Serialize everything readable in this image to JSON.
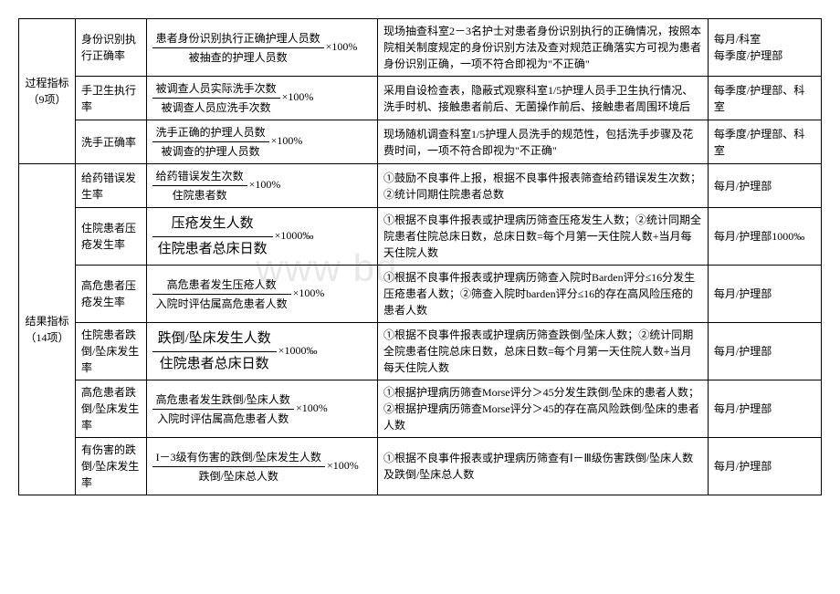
{
  "watermark": "www bd",
  "categories": {
    "process": {
      "label": "过程指标（9项）",
      "rows": [
        {
          "name": "身份识别执行正确率",
          "formula_num": "患者身份识别执行正确护理人员数",
          "formula_den": "被抽查的护理人员数",
          "multiplier": "×100%",
          "desc": "现场抽查科室2－3名护士对患者身份识别执行的正确情况，按照本院相关制度规定的身份识别方法及查对规范正确落实方可视为患者身份识别正确，一项不符合即视为\"不正确\"",
          "freq": "每月/科室\n每季度/护理部"
        },
        {
          "name": "手卫生执行率",
          "formula_num": "被调查人员实际洗手次数",
          "formula_den": "被调查人员应洗手次数",
          "multiplier": "×100%",
          "desc": "采用自设检查表，隐蔽式观察科室1/5护理人员手卫生执行情况、洗手时机、接触患者前后、无菌操作前后、接触患者周围环境后",
          "freq": "每季度/护理部、科室"
        },
        {
          "name": "洗手正确率",
          "formula_num": "洗手正确的护理人员数",
          "formula_den": "被调查的护理人员数",
          "multiplier": "×100%",
          "desc": "现场随机调查科室1/5护理人员洗手的规范性，包括洗手步骤及花费时间，一项不符合即视为\"不正确\"",
          "freq": "每季度/护理部、科室"
        }
      ]
    },
    "result": {
      "label": "结果指标（14项）",
      "rows": [
        {
          "name": "给药错误发生率",
          "formula_num": "给药错误发生次数",
          "formula_den": "住院患者数",
          "multiplier": "×100%",
          "desc": "①鼓励不良事件上报，根据不良事件报表筛查给药错误发生次数；②统计同期住院患者总数",
          "freq": "每月/护理部"
        },
        {
          "name": "住院患者压疮发生率",
          "formula_num": "压疮发生人数",
          "formula_den": "住院患者总床日数",
          "multiplier": "×1000‰",
          "large": true,
          "desc": "①根据不良事件报表或护理病历筛查压疮发生人数；②统计同期全院患者住院总床日数，总床日数=每个月第一天住院人数+当月每天住院人数",
          "freq": "每月/护理部1000‰"
        },
        {
          "name": "高危患者压疮发生率",
          "formula_num": "高危患者发生压疮人数",
          "formula_den": "入院时评估属高危患者人数",
          "multiplier": "×100%",
          "desc": "①根据不良事件报表或护理病历筛查入院时Barden评分≤16分发生压疮患者人数；②筛查入院时barden评分≤16的存在高风险压疮的患者人数",
          "freq": "每月/护理部"
        },
        {
          "name": "住院患者跌倒/坠床发生率",
          "formula_num": "跌倒/坠床发生人数",
          "formula_den": "住院患者总床日数",
          "multiplier": "×1000‰",
          "large": true,
          "desc": "①根据不良事件报表或护理病历筛查跌倒/坠床人数；②统计同期全院患者住院总床日数，总床日数=每个月第一天住院人数+当月每天住院人数",
          "freq": "每月/护理部"
        },
        {
          "name": "高危患者跌倒/坠床发生率",
          "formula_num": "高危患者发生跌倒/坠床人数",
          "formula_den": "入院时评估属高危患者人数",
          "multiplier": "×100%",
          "desc": "①根据护理病历筛查Morse评分＞45分发生跌倒/坠床的患者人数；②根据护理病历筛查Morse评分＞45的存在高风险跌倒/坠床的患者人数",
          "freq": "每月/护理部"
        },
        {
          "name": "有伤害的跌倒/坠床发生率",
          "formula_num": "I－3级有伤害的跌倒/坠床发生人数",
          "formula_den": "跌倒/坠床总人数",
          "multiplier": "×100%",
          "desc": "①根据不良事件报表或护理病历筛查有Ⅰ－Ⅲ级伤害跌倒/坠床人数及跌倒/坠床总人数",
          "freq": "每月/护理部"
        }
      ]
    }
  }
}
